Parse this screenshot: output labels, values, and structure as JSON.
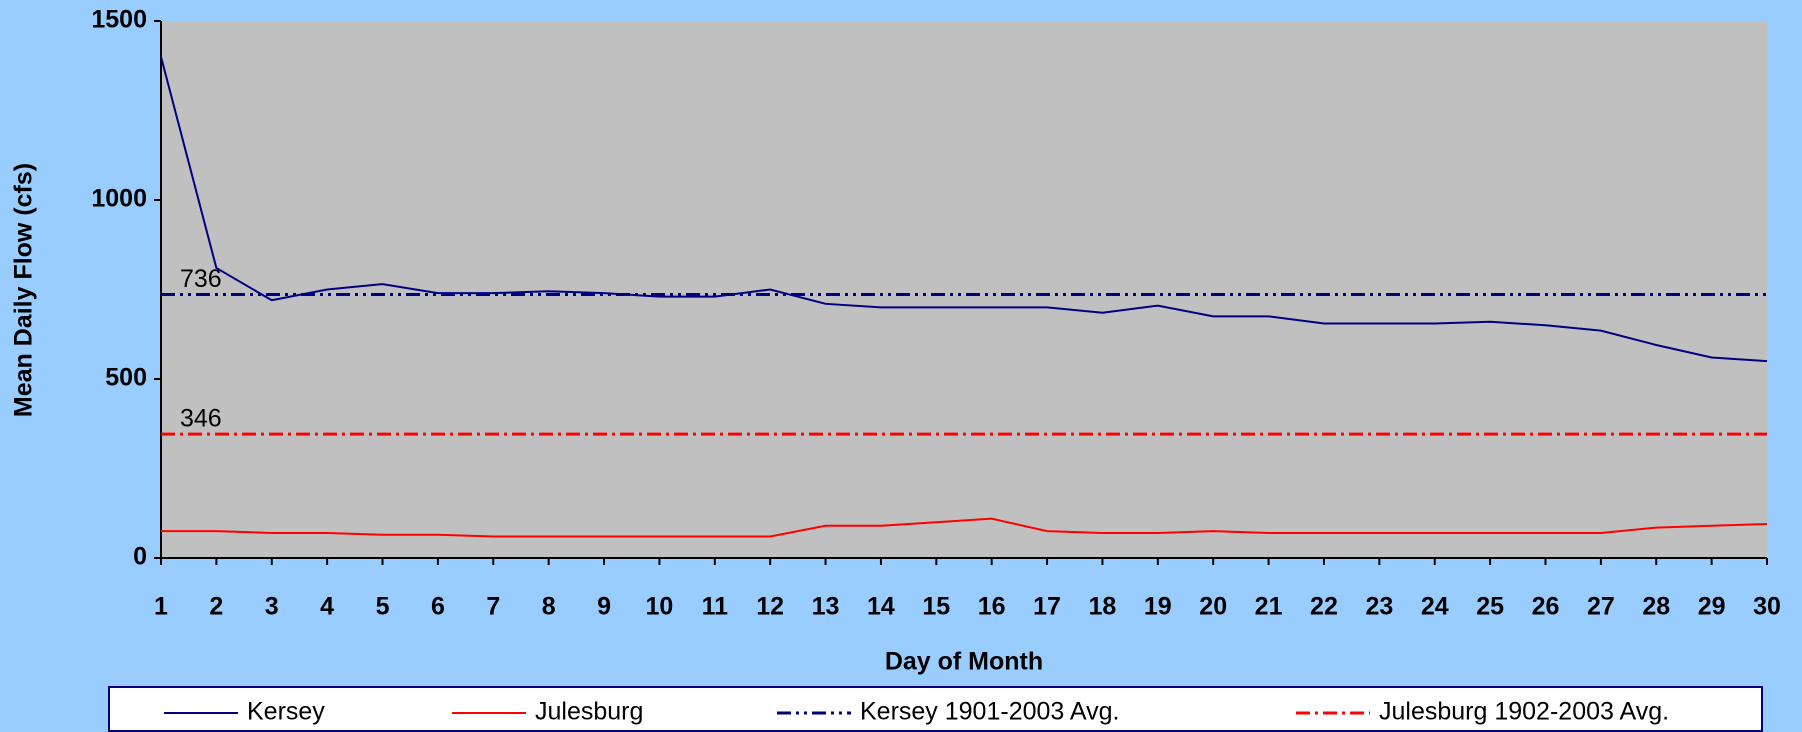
{
  "chart_data": {
    "type": "line",
    "x_label": "Day of Month",
    "y_label": "Mean Daily Flow (cfs)",
    "x": [
      1,
      2,
      3,
      4,
      5,
      6,
      7,
      8,
      9,
      10,
      11,
      12,
      13,
      14,
      15,
      16,
      17,
      18,
      19,
      20,
      21,
      22,
      23,
      24,
      25,
      26,
      27,
      28,
      29,
      30
    ],
    "xlim": [
      1,
      30
    ],
    "xticks": [
      1,
      2,
      3,
      4,
      5,
      6,
      7,
      8,
      9,
      10,
      11,
      12,
      13,
      14,
      15,
      16,
      17,
      18,
      19,
      20,
      21,
      22,
      23,
      24,
      25,
      26,
      27,
      28,
      29,
      30
    ],
    "ylim": [
      0,
      1500
    ],
    "yticks": [
      0,
      500,
      1000,
      1500
    ],
    "grid": false,
    "series": [
      {
        "name": "Kersey",
        "color": "#000080",
        "values": [
          1400,
          810,
          720,
          750,
          765,
          740,
          740,
          745,
          740,
          730,
          730,
          750,
          710,
          700,
          700,
          700,
          700,
          685,
          705,
          675,
          675,
          655,
          655,
          655,
          660,
          650,
          635,
          595,
          560,
          550
        ]
      },
      {
        "name": "Julesburg",
        "color": "#ff0000",
        "values": [
          75,
          75,
          70,
          70,
          65,
          65,
          60,
          60,
          60,
          60,
          60,
          60,
          90,
          90,
          100,
          110,
          75,
          70,
          70,
          75,
          70,
          70,
          70,
          70,
          70,
          70,
          70,
          85,
          90,
          95
        ]
      }
    ],
    "reference_lines": [
      {
        "name": "Kersey 1901-2003 Avg.",
        "value": 736,
        "color": "#000080"
      },
      {
        "name": "Julesburg 1902-2003 Avg.",
        "value": 346,
        "color": "#ff0000"
      }
    ],
    "legend": "bottom"
  }
}
